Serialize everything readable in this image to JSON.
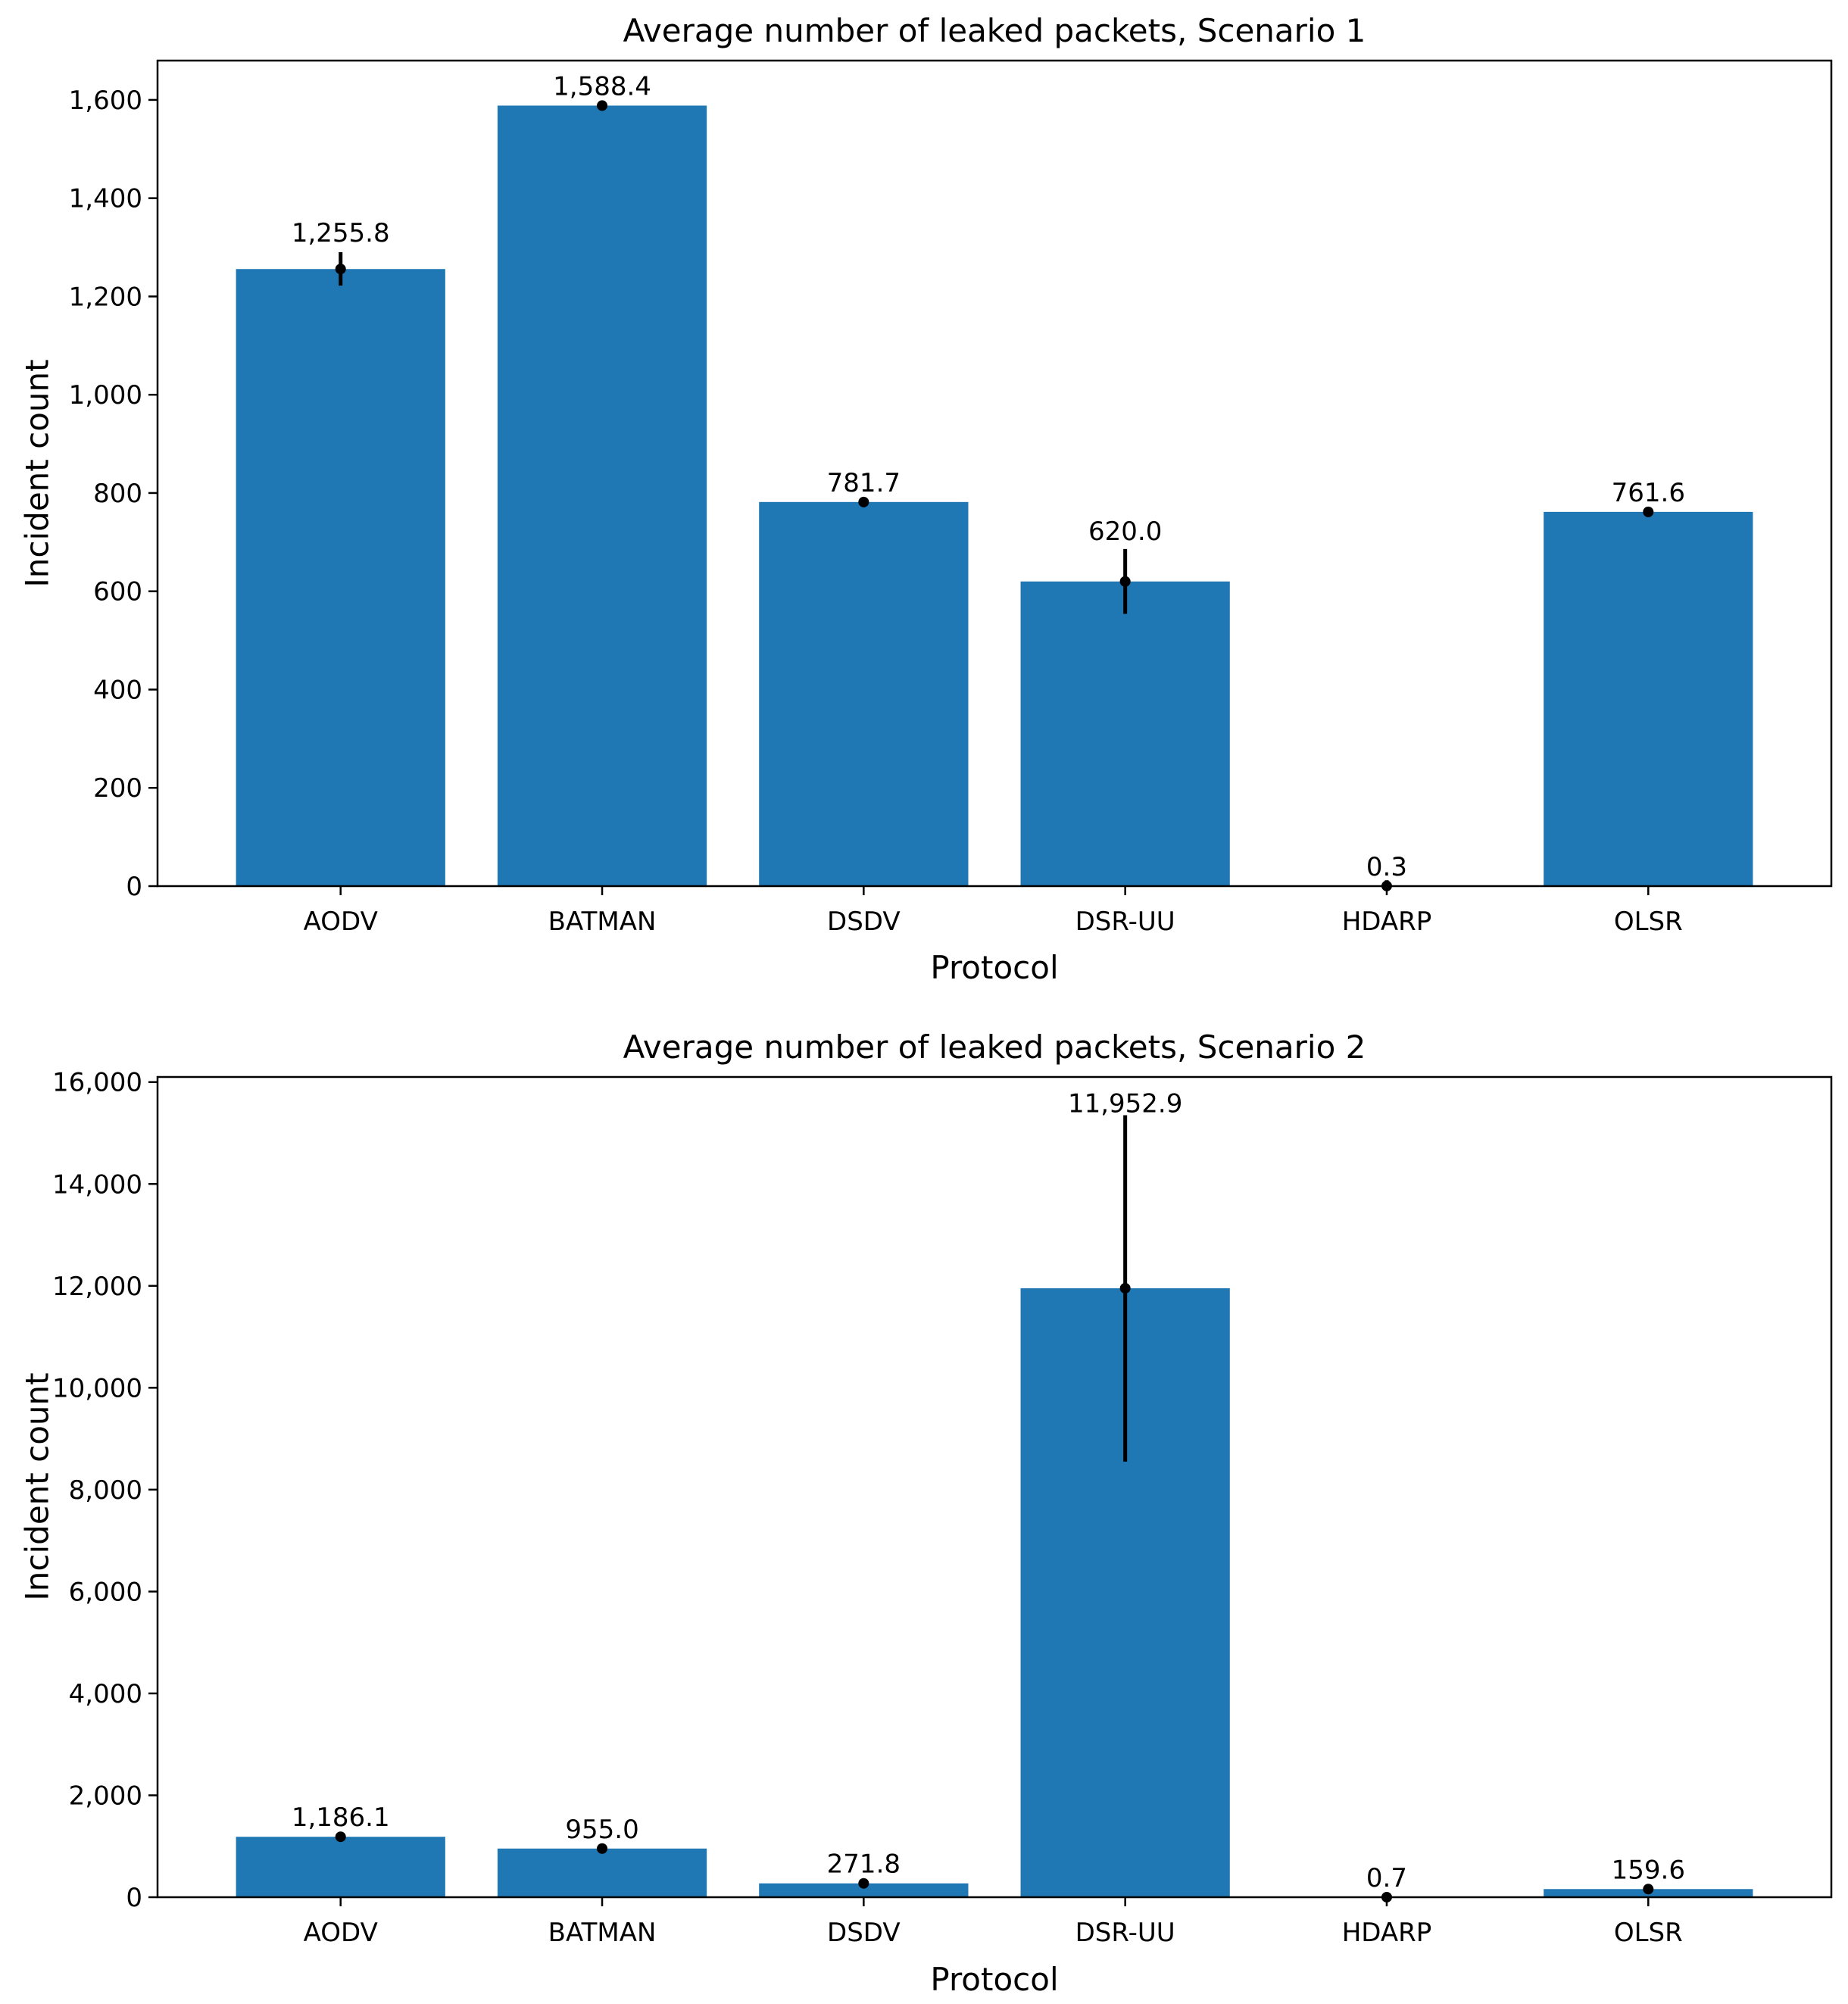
{
  "chart_data": [
    {
      "type": "bar",
      "title": "Average number of leaked packets, Scenario 1",
      "xlabel": "Protocol",
      "ylabel": "Incident count",
      "categories": [
        "AODV",
        "BATMAN",
        "DSDV",
        "DSR-UU",
        "HDARP",
        "OLSR"
      ],
      "values": [
        1255.8,
        1588.4,
        781.7,
        620.0,
        0.3,
        761.6
      ],
      "value_labels": [
        "1,255.8",
        "1,588.4",
        "781.7",
        "620.0",
        "0.3",
        "761.6"
      ],
      "error_bars": [
        [
          1222,
          1290
        ],
        [
          1586,
          1591
        ],
        [
          772,
          791
        ],
        [
          554,
          686
        ],
        [
          0,
          12
        ],
        [
          756,
          767
        ]
      ],
      "ylim": [
        0,
        1680
      ],
      "yticks": [
        0,
        200,
        400,
        600,
        800,
        1000,
        1200,
        1400,
        1600
      ],
      "ytick_labels": [
        "0",
        "200",
        "400",
        "600",
        "800",
        "1,000",
        "1,200",
        "1,400",
        "1,600"
      ],
      "bar_color": "#1f77b4",
      "grid": false
    },
    {
      "type": "bar",
      "title": "Average number of leaked packets, Scenario 2",
      "xlabel": "Protocol",
      "ylabel": "Incident count",
      "categories": [
        "AODV",
        "BATMAN",
        "DSDV",
        "DSR-UU",
        "HDARP",
        "OLSR"
      ],
      "values": [
        1186.1,
        955.0,
        271.8,
        11952.9,
        0.7,
        159.6
      ],
      "value_labels": [
        "1,186.1",
        "955.0",
        "271.8",
        "11,952.9",
        "0.7",
        "159.6"
      ],
      "error_bars": [
        [
          1160,
          1212
        ],
        [
          930,
          980
        ],
        [
          255,
          290
        ],
        [
          8550,
          15350
        ],
        [
          0,
          80
        ],
        [
          140,
          180
        ]
      ],
      "ylim": [
        0,
        16100
      ],
      "yticks": [
        0,
        2000,
        4000,
        6000,
        8000,
        10000,
        12000,
        14000,
        16000
      ],
      "ytick_labels": [
        "0",
        "2,000",
        "4,000",
        "6,000",
        "8,000",
        "10,000",
        "12,000",
        "14,000",
        "16,000"
      ],
      "bar_color": "#1f77b4",
      "grid": false
    }
  ]
}
